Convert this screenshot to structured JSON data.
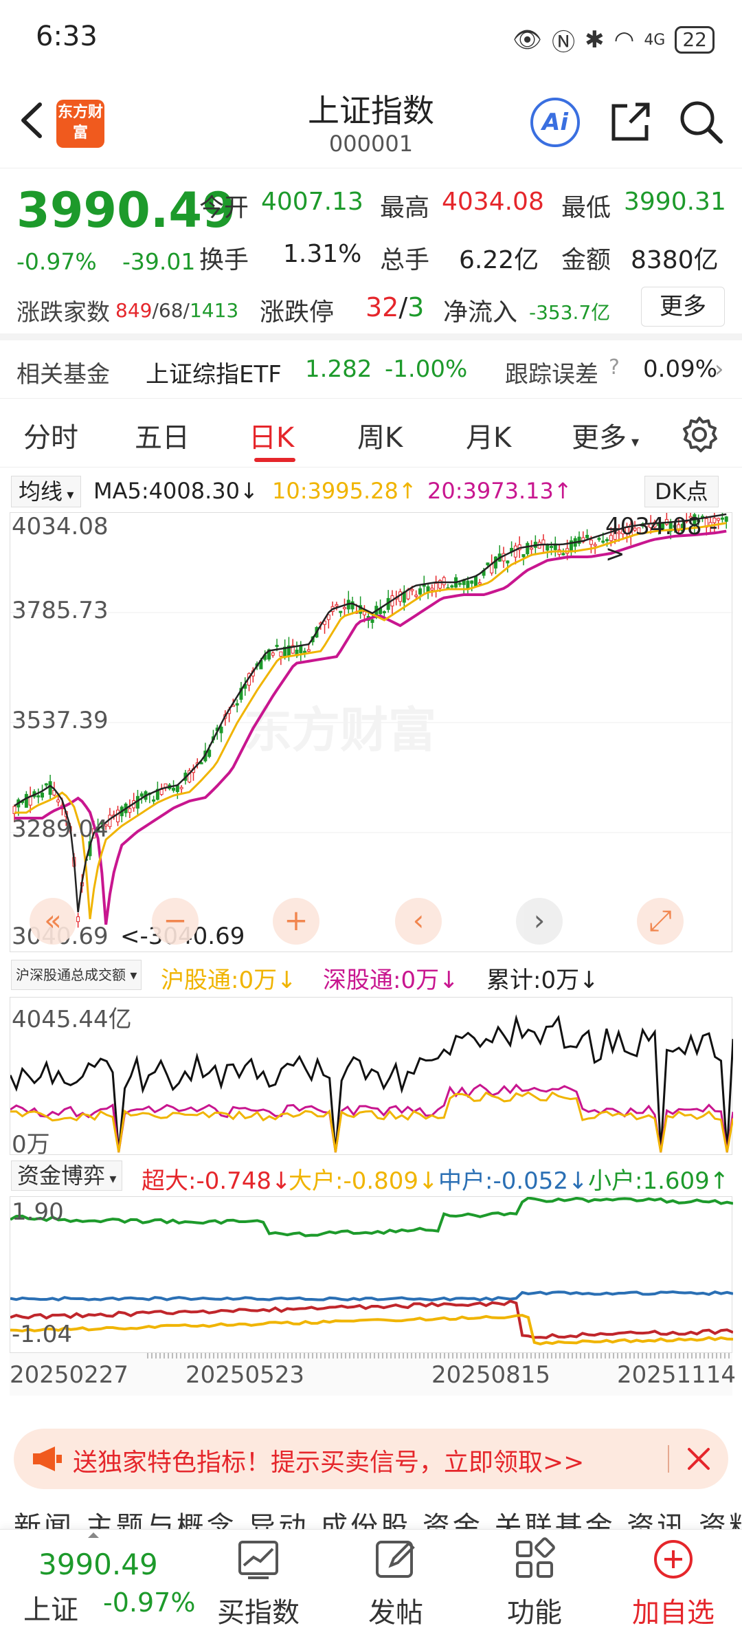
{
  "status": {
    "time": "6:33",
    "battery": "22",
    "network": "4G"
  },
  "header": {
    "title": "上证指数",
    "code": "000001",
    "logo_text": "东方财富",
    "ai_label": "Ai"
  },
  "quote": {
    "price": "3990.49",
    "change_pct": "-0.97%",
    "change_abs": "-39.01",
    "open_label": "今开",
    "open": "4007.13",
    "high_label": "最高",
    "high": "4034.08",
    "low_label": "最低",
    "low": "3990.31",
    "turnover_label": "换手",
    "turnover": "1.31%",
    "volume_label": "总手",
    "volume": "6.22亿",
    "amount_label": "金额",
    "amount": "8380亿",
    "adv_label": "涨跌家数",
    "adv_up": "849",
    "adv_flat": "68",
    "adv_down": "1413",
    "limit_label": "涨跌停",
    "limit_up": "32",
    "limit_down": "3",
    "inflow_label": "净流入",
    "inflow": "-353.7亿",
    "more_label": "更多"
  },
  "fund_row": {
    "label": "相关基金",
    "fund_name": "上证综指ETF",
    "fund_price": "1.282",
    "fund_change": "-1.00%",
    "track_label": "跟踪误差",
    "track_value": "0.09%"
  },
  "tabs": [
    "分时",
    "五日",
    "日K",
    "周K",
    "月K",
    "更多"
  ],
  "active_tab": "日K",
  "ma": {
    "select": "均线",
    "ma5": "MA5:4008.30",
    "ma10": "10:3995.28",
    "ma20": "20:3973.13",
    "dk": "DK点"
  },
  "chart_labels": {
    "y1": "4034.08",
    "y2": "3785.73",
    "y3": "3537.39",
    "y4": "3289.04",
    "y5": "3040.69",
    "max_marker": "4034.08",
    "min_marker": "<-3040.69",
    "watermark": "东方财富"
  },
  "colors": {
    "up": "#e5262b",
    "down": "#1d9a2b",
    "ma5": "#222222",
    "ma10": "#f0b400",
    "ma20": "#c8168f",
    "accent": "#e5262b"
  },
  "volume": {
    "select": "沪深股通总成交额",
    "hgt": "沪股通:0万",
    "sgt": "深股通:0万",
    "total": "累计:0万",
    "top_label": "4045.44亿",
    "bottom_label": "0万"
  },
  "funds": {
    "select": "资金博弈",
    "super": "超大:-0.748",
    "large": "大户:-0.809",
    "mid": "中户:-0.052",
    "small": "小户:1.609",
    "top_label": "1.90",
    "bottom_label": "-1.04"
  },
  "dates": [
    "20250227",
    "20250523",
    "20250815",
    "20251114"
  ],
  "banner": {
    "text": "送独家特色指标！提示买卖信号，立即领取>>"
  },
  "subtabs": "新闻  主题与概念  异动  成份股  资金  关联基金  资讯  资料",
  "bottom": {
    "price": "3990.49",
    "name": "上证",
    "pct": "-0.97%",
    "buy": "买指数",
    "post": "发帖",
    "func": "功能",
    "add": "加自选"
  }
}
